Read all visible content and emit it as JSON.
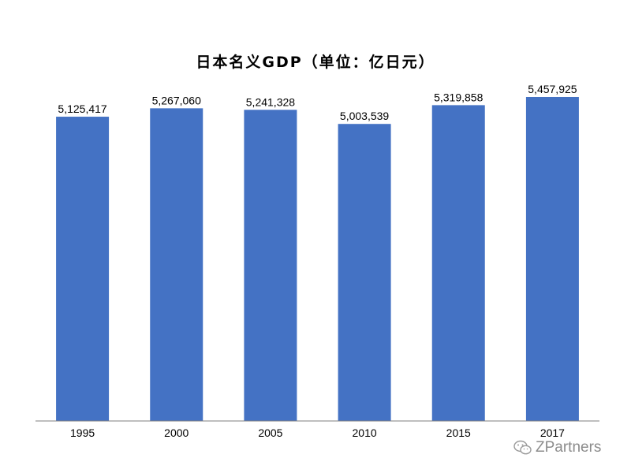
{
  "title": "日本名义GDP（单位：亿日元）",
  "chart_data": {
    "type": "bar",
    "title": "日本名义GDP（单位：亿日元）",
    "categories": [
      "1995",
      "2000",
      "2005",
      "2010",
      "2015",
      "2017"
    ],
    "values": [
      5125417,
      5267060,
      5241328,
      5003539,
      5319858,
      5457925
    ],
    "data_labels": [
      "5,125,417",
      "5,267,060",
      "5,241,328",
      "5,003,539",
      "5,319,858",
      "5,457,925"
    ],
    "xlabel": "",
    "ylabel": "",
    "ylim": [
      0,
      5750000
    ],
    "grid": false,
    "legend": "none",
    "bar_color": "#4472C4"
  },
  "watermark": {
    "text": "ZPartners",
    "icon": "wechat-icon"
  }
}
